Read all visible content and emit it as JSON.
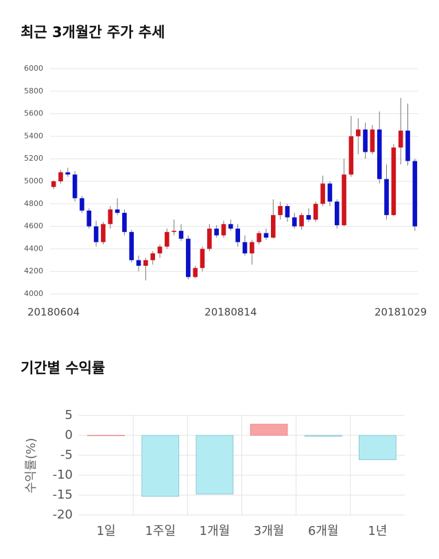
{
  "chart_data": [
    {
      "type": "candlestick",
      "title": "최근 3개월간 주가 추세",
      "categories": [
        "20180604",
        null,
        null,
        null,
        null,
        null,
        null,
        null,
        null,
        null,
        null,
        null,
        null,
        null,
        null,
        null,
        null,
        null,
        null,
        null,
        null,
        null,
        null,
        null,
        null,
        "20180814",
        null,
        null,
        null,
        null,
        null,
        null,
        null,
        null,
        null,
        null,
        null,
        null,
        null,
        null,
        null,
        null,
        null,
        null,
        null,
        null,
        null,
        null,
        null,
        "20181029",
        null,
        null
      ],
      "open": [
        4950,
        5000,
        5080,
        5060,
        4850,
        4740,
        4600,
        4460,
        4620,
        4750,
        4720,
        4550,
        4300,
        4250,
        4300,
        4360,
        4420,
        4550,
        4560,
        4490,
        4150,
        4230,
        4400,
        4580,
        4520,
        4620,
        4580,
        4460,
        4360,
        4460,
        4540,
        4500,
        4700,
        4780,
        4680,
        4600,
        4700,
        4660,
        4800,
        4980,
        4820,
        4610,
        5060,
        5400,
        5460,
        5260,
        5460,
        5020,
        4700,
        5300,
        5450,
        5180
      ],
      "high": [
        5010,
        5100,
        5120,
        5090,
        4870,
        4760,
        4650,
        4640,
        4780,
        4850,
        4750,
        4570,
        4340,
        4320,
        4380,
        4440,
        4580,
        4660,
        4620,
        4520,
        4250,
        4420,
        4620,
        4610,
        4650,
        4660,
        4620,
        4520,
        4480,
        4560,
        4580,
        4840,
        4820,
        4800,
        4720,
        4720,
        4760,
        4820,
        5050,
        5000,
        4840,
        5200,
        5580,
        5560,
        5520,
        5500,
        5620,
        5150,
        5330,
        5740,
        5690,
        5200
      ],
      "low": [
        4930,
        4980,
        5040,
        4820,
        4720,
        4580,
        4420,
        4440,
        4580,
        4700,
        4520,
        4280,
        4200,
        4120,
        4260,
        4320,
        4400,
        4520,
        4470,
        4130,
        4140,
        4200,
        4380,
        4500,
        4500,
        4560,
        4420,
        4340,
        4260,
        4440,
        4480,
        4490,
        4660,
        4640,
        4580,
        4570,
        4640,
        4640,
        4780,
        4780,
        4580,
        4600,
        5040,
        5240,
        5200,
        5240,
        4980,
        4660,
        4690,
        5150,
        5140,
        4560
      ],
      "close": [
        5000,
        5080,
        5060,
        4850,
        4740,
        4600,
        4460,
        4620,
        4750,
        4720,
        4550,
        4300,
        4250,
        4300,
        4360,
        4420,
        4550,
        4560,
        4490,
        4150,
        4230,
        4400,
        4580,
        4520,
        4620,
        4580,
        4460,
        4360,
        4460,
        4540,
        4500,
        4700,
        4780,
        4680,
        4600,
        4700,
        4660,
        4800,
        4980,
        4820,
        4610,
        5060,
        5400,
        5460,
        5260,
        5460,
        5020,
        4700,
        5300,
        5450,
        5180,
        4600
      ],
      "up_color": "#d0141c",
      "down_color": "#0a10c8",
      "ylim": [
        4000,
        6000
      ],
      "yticks": [
        4000,
        4200,
        4400,
        4600,
        4800,
        5000,
        5200,
        5400,
        5600,
        5800,
        6000
      ],
      "grid": true
    },
    {
      "type": "bar",
      "title": "기간별 수익률",
      "ylabel": "수익률(%)",
      "categories": [
        "1일",
        "1주일",
        "1개월",
        "3개월",
        "6개월",
        "1년"
      ],
      "values": [
        0,
        -15.3,
        -14.7,
        2.8,
        -0.2,
        -6.1
      ],
      "positive_color": "#f7a3a3",
      "negative_color": "#b3ebf3",
      "ylim": [
        -20,
        5
      ],
      "yticks": [
        5,
        0,
        -5,
        -10,
        -15,
        -20
      ],
      "grid": true
    }
  ]
}
